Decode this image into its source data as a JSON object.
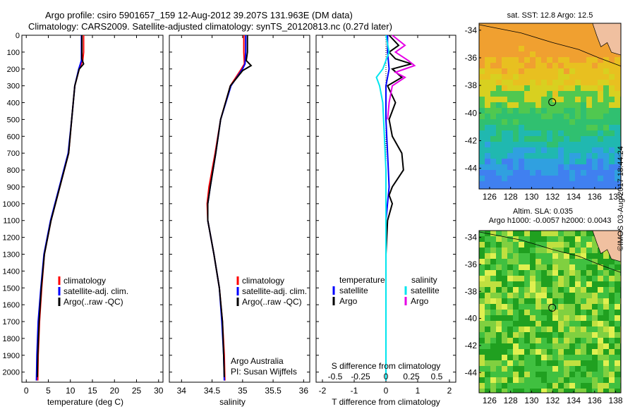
{
  "header": {
    "line1": "Argo profile: csiro 5901657_159 12-Aug-2012 39.207S 131.963E (DM data)",
    "line2": "Climatology: CARS2009. Satellite-adjusted climatology: synTS_20120813.nc (0.27d later)"
  },
  "colors": {
    "climatology": "#ff0000",
    "satellite": "#0000ff",
    "argo": "#000000",
    "salinity_sat": "#00e5ee",
    "salinity_argo": "#e600e6"
  },
  "chart_data": [
    {
      "type": "line",
      "name_ref": "temperature-profile",
      "xlabel": "temperature (deg C)",
      "xlim": [
        -1,
        31
      ],
      "ylim": [
        2060,
        0
      ],
      "xticks": [
        0,
        5,
        10,
        15,
        20,
        25,
        30
      ],
      "yticks": [
        0,
        100,
        200,
        300,
        400,
        500,
        600,
        700,
        800,
        900,
        1000,
        1100,
        1200,
        1300,
        1400,
        1500,
        1600,
        1700,
        1800,
        1900,
        2000
      ],
      "series": [
        {
          "name": "climatology",
          "depth": [
            0,
            100,
            150,
            200,
            300,
            500,
            700,
            900,
            1100,
            1300,
            1500,
            1700,
            1900,
            2050
          ],
          "values": [
            13.0,
            13.0,
            12.8,
            12.0,
            11.0,
            10.3,
            9.6,
            7.6,
            5.6,
            4.1,
            3.5,
            3.0,
            2.7,
            2.6
          ]
        },
        {
          "name": "satellite-adj. clim.",
          "depth": [
            0,
            100,
            150,
            200,
            300,
            500,
            700,
            900,
            1100,
            1300,
            1500,
            1700,
            1900,
            2050
          ],
          "values": [
            12.5,
            12.5,
            12.5,
            11.9,
            11.0,
            10.3,
            9.5,
            7.5,
            5.5,
            4.0,
            3.3,
            2.7,
            2.4,
            2.3
          ]
        },
        {
          "name": "Argo(..raw -QC)",
          "depth": [
            0,
            100,
            140,
            170,
            200,
            300,
            500,
            700,
            900,
            1100,
            1300,
            1500,
            1700,
            1900,
            2030
          ],
          "values": [
            12.6,
            12.6,
            12.6,
            13.0,
            12.0,
            11.0,
            10.3,
            9.6,
            7.6,
            5.6,
            4.1,
            3.4,
            2.9,
            2.6,
            2.5
          ]
        }
      ],
      "legend": [
        "climatology",
        "satellite-adj. clim.",
        "Argo(..raw -QC)"
      ]
    },
    {
      "type": "line",
      "name_ref": "salinity-profile",
      "xlabel": "salinity",
      "xlim": [
        33.8,
        36.1
      ],
      "ylim": [
        2060,
        0
      ],
      "xticks": [
        34,
        34.5,
        35,
        35.5,
        36
      ],
      "series": [
        {
          "name": "climatology",
          "depth": [
            0,
            100,
            170,
            200,
            300,
            500,
            700,
            900,
            1000,
            1100,
            1300,
            1500,
            1700,
            1900,
            2050
          ],
          "values": [
            35.02,
            35.02,
            35.03,
            34.98,
            34.8,
            34.64,
            34.55,
            34.45,
            34.42,
            34.43,
            34.53,
            34.62,
            34.67,
            34.7,
            34.71
          ]
        },
        {
          "name": "satellite-adj. clim.",
          "depth": [
            0,
            100,
            170,
            200,
            300,
            500,
            700,
            900,
            1000,
            1100,
            1300,
            1500,
            1700,
            1900,
            2050
          ],
          "values": [
            35.05,
            35.05,
            35.04,
            35.0,
            34.81,
            34.64,
            34.56,
            34.47,
            34.43,
            34.43,
            34.53,
            34.62,
            34.66,
            34.69,
            34.7
          ]
        },
        {
          "name": "Argo(..raw -QC)",
          "depth": [
            0,
            100,
            150,
            180,
            210,
            300,
            500,
            700,
            900,
            1000,
            1100,
            1300,
            1500,
            1700,
            1900,
            2030
          ],
          "values": [
            35.08,
            35.08,
            35.06,
            35.14,
            35.0,
            34.8,
            34.64,
            34.56,
            34.47,
            34.43,
            34.43,
            34.53,
            34.62,
            34.67,
            34.69,
            34.7
          ]
        }
      ],
      "legend": [
        "climatology",
        "satellite-adj. clim.",
        "Argo(..raw -QC)"
      ],
      "annotation": [
        "Argo Australia",
        "PI: Susan Wijffels"
      ]
    },
    {
      "type": "line",
      "name_ref": "difference-profile",
      "xlabel": "T difference from climatology",
      "xlabel_top": "S difference from climatology",
      "xlim": [
        -2.2,
        2.2
      ],
      "ylim": [
        2060,
        0
      ],
      "xticks": [
        -2,
        -1,
        0,
        1,
        2
      ],
      "top_ticks": [
        {
          "label": "-0.5",
          "pos": -1.6
        },
        {
          "label": "-0.25",
          "pos": -0.8
        },
        {
          "label": "0",
          "pos": 0
        },
        {
          "label": "0.25",
          "pos": 0.8
        },
        {
          "label": "0.5",
          "pos": 1.6
        }
      ],
      "series": [
        {
          "name": "temperature satellite",
          "depth": [
            0,
            100,
            200,
            300,
            500,
            700,
            900,
            1100,
            1300,
            1500,
            1700,
            1900,
            2050
          ],
          "values": [
            0.05,
            0.05,
            0.1,
            0.0,
            0.0,
            0.05,
            0.1,
            0.0,
            0.0,
            0.0,
            0.0,
            0.0,
            0.0
          ]
        },
        {
          "name": "temperature Argo",
          "depth": [
            0,
            60,
            100,
            140,
            170,
            200,
            250,
            300,
            400,
            500,
            600,
            700,
            800,
            900,
            950,
            1000,
            1100,
            1300,
            1500,
            1700,
            1900,
            2050
          ],
          "values": [
            0.1,
            0.4,
            0.1,
            0.3,
            0.8,
            0.2,
            0.5,
            0.05,
            0.3,
            0.1,
            0.2,
            0.5,
            0.55,
            0.2,
            0.1,
            0.2,
            0.05,
            0.0,
            0.0,
            0.0,
            0.0,
            0.0
          ]
        },
        {
          "name": "salinity satellite",
          "depth": [
            0,
            100,
            200,
            250,
            300,
            400,
            600,
            800,
            1000,
            1200,
            1500,
            1800,
            2050
          ],
          "values": [
            0.0,
            0.1,
            -0.1,
            -0.3,
            -0.2,
            -0.1,
            -0.05,
            0.0,
            0.0,
            0.0,
            0.0,
            0.0,
            0.0
          ]
        },
        {
          "name": "salinity Argo",
          "depth": [
            0,
            60,
            100,
            150,
            180,
            220,
            250,
            300,
            400,
            500
          ],
          "values": [
            0.2,
            0.6,
            0.3,
            0.7,
            0.9,
            0.3,
            0.6,
            0.2,
            0.1,
            0.05
          ]
        }
      ],
      "legend": {
        "temperature_header": "temperature",
        "salinity_header": "salinity",
        "temperature": [
          "satellite",
          "Argo"
        ],
        "salinity": [
          "satellite",
          "Argo"
        ]
      }
    },
    {
      "type": "heatmap",
      "name_ref": "sst-map",
      "title": "sat. SST: 12.8 Argo: 12.5",
      "xticks": [
        126,
        128,
        130,
        132,
        134,
        136,
        138
      ],
      "yticks": [
        -34,
        -36,
        -38,
        -40,
        -42,
        -44
      ],
      "xlim": [
        125,
        138.5
      ],
      "ylim": [
        -45.5,
        -33.5
      ],
      "marker": {
        "lon": 131.963,
        "lat": -39.207
      }
    },
    {
      "type": "heatmap",
      "name_ref": "sla-map",
      "title": "Altim. SLA: 0.035",
      "title2": "Argo h1000: -0.0057 h2000: 0.0043",
      "xticks": [
        126,
        128,
        130,
        132,
        134,
        136,
        138
      ],
      "yticks": [
        -34,
        -36,
        -38,
        -40,
        -42,
        -44
      ],
      "xlim": [
        125,
        138.5
      ],
      "ylim": [
        -45.5,
        -33.5
      ],
      "marker": {
        "lon": 131.963,
        "lat": -39.207
      }
    }
  ],
  "side_label": "©IMOS 03-Aug-2017 18:44:24"
}
